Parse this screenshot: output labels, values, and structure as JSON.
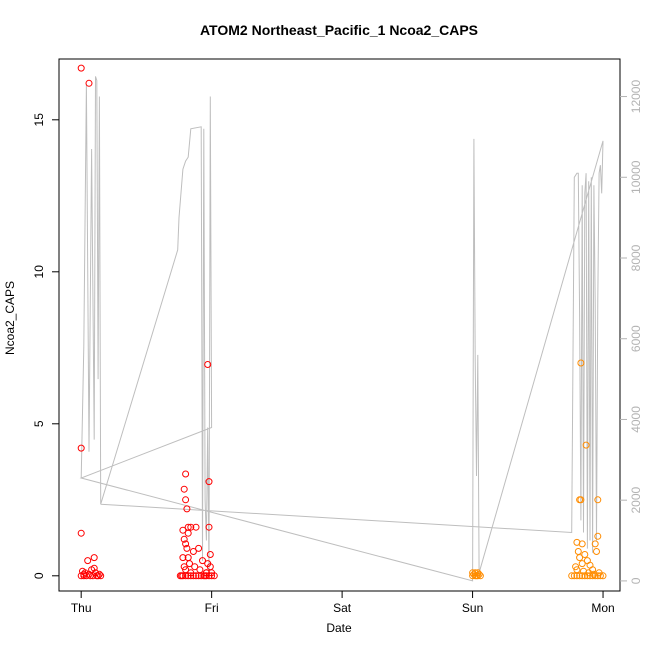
{
  "chart_data": {
    "type": "scatter",
    "title": "ATOM2 Northeast_Pacific_1 Ncoa2_CAPS",
    "xlabel": "Date",
    "ylabel": "Ncoa2_CAPS",
    "x_unit": "days from Thursday 00:00",
    "xlim": [
      -0.17,
      4.13
    ],
    "ylim": [
      -0.5,
      17.0
    ],
    "x_ticks": [
      {
        "value": 0,
        "label": "Thu"
      },
      {
        "value": 1,
        "label": "Fri"
      },
      {
        "value": 2,
        "label": "Sat"
      },
      {
        "value": 3,
        "label": "Sun"
      },
      {
        "value": 4,
        "label": "Mon"
      }
    ],
    "y_ticks": [
      0,
      5,
      10,
      15
    ],
    "y2_ticks": [
      0,
      2000,
      4000,
      6000,
      8000,
      10000,
      12000
    ],
    "y2lim": [
      -250,
      12930
    ],
    "grid": false,
    "legend": "none",
    "colors": {
      "red": "#ff0000",
      "orange": "#ff8c00",
      "line": "#bebebe",
      "right_axis": "#b3b3b3"
    },
    "series": [
      {
        "color": "red",
        "points": [
          [
            0.0,
            16.7
          ],
          [
            0.06,
            16.2
          ],
          [
            0.0,
            4.2
          ],
          [
            0.0,
            1.4
          ],
          [
            0.05,
            0.5
          ],
          [
            0.1,
            0.6
          ],
          [
            0.01,
            0.15
          ],
          [
            0.02,
            0.05
          ],
          [
            0.03,
            0.1
          ],
          [
            0.04,
            0.0
          ],
          [
            0.06,
            0.05
          ],
          [
            0.08,
            0.2
          ],
          [
            0.09,
            0.0
          ],
          [
            0.11,
            0.1
          ],
          [
            0.12,
            0.0
          ],
          [
            0.14,
            0.05
          ],
          [
            0.15,
            0.0
          ],
          [
            0.0,
            0.0
          ],
          [
            0.02,
            0.0
          ],
          [
            0.07,
            0.0
          ],
          [
            0.13,
            0.0
          ],
          [
            0.1,
            0.25
          ],
          [
            0.8,
            3.35
          ],
          [
            0.79,
            2.85
          ],
          [
            0.8,
            2.5
          ],
          [
            0.81,
            2.2
          ],
          [
            0.78,
            1.5
          ],
          [
            0.82,
            1.4
          ],
          [
            0.79,
            1.2
          ],
          [
            0.8,
            1.05
          ],
          [
            0.81,
            0.9
          ],
          [
            0.78,
            0.6
          ],
          [
            0.82,
            0.6
          ],
          [
            0.83,
            0.4
          ],
          [
            0.79,
            0.3
          ],
          [
            0.8,
            0.2
          ],
          [
            0.84,
            0.1
          ],
          [
            0.77,
            0.0
          ],
          [
            0.76,
            0.0
          ],
          [
            0.78,
            0.0
          ],
          [
            0.8,
            0.0
          ],
          [
            0.82,
            0.0
          ],
          [
            0.84,
            0.0
          ],
          [
            0.86,
            0.0
          ],
          [
            0.88,
            0.0
          ],
          [
            0.9,
            0.0
          ],
          [
            0.92,
            0.0
          ],
          [
            0.94,
            0.0
          ],
          [
            0.96,
            0.0
          ],
          [
            0.98,
            0.0
          ],
          [
            1.0,
            0.0
          ],
          [
            1.02,
            0.0
          ],
          [
            0.82,
            1.6
          ],
          [
            0.84,
            1.6
          ],
          [
            0.88,
            1.6
          ],
          [
            0.86,
            0.8
          ],
          [
            0.9,
            0.9
          ],
          [
            0.87,
            0.3
          ],
          [
            0.91,
            0.2
          ],
          [
            0.93,
            0.5
          ],
          [
            0.95,
            0.0
          ],
          [
            0.96,
            0.1
          ],
          [
            0.97,
            6.95
          ],
          [
            0.98,
            3.1
          ],
          [
            0.98,
            1.6
          ],
          [
            0.99,
            0.7
          ],
          [
            0.97,
            0.4
          ],
          [
            0.99,
            0.3
          ],
          [
            1.0,
            0.1
          ],
          [
            0.96,
            0.1
          ]
        ]
      },
      {
        "color": "orange",
        "points": [
          [
            3.0,
            0.1
          ],
          [
            3.01,
            0.05
          ],
          [
            3.02,
            0.1
          ],
          [
            3.03,
            0.0
          ],
          [
            3.04,
            0.1
          ],
          [
            3.05,
            0.05
          ],
          [
            3.06,
            0.0
          ],
          [
            3.0,
            0.0
          ],
          [
            3.02,
            0.0
          ],
          [
            3.04,
            0.0
          ],
          [
            3.83,
            7.0
          ],
          [
            3.87,
            4.3
          ],
          [
            3.83,
            2.5
          ],
          [
            3.82,
            2.5
          ],
          [
            3.96,
            2.5
          ],
          [
            3.8,
            1.1
          ],
          [
            3.84,
            1.05
          ],
          [
            3.96,
            1.3
          ],
          [
            3.94,
            1.05
          ],
          [
            3.95,
            0.8
          ],
          [
            3.81,
            0.8
          ],
          [
            3.82,
            0.6
          ],
          [
            3.86,
            0.7
          ],
          [
            3.88,
            0.5
          ],
          [
            3.84,
            0.4
          ],
          [
            3.79,
            0.3
          ],
          [
            3.8,
            0.2
          ],
          [
            3.9,
            0.35
          ],
          [
            3.92,
            0.2
          ],
          [
            3.97,
            0.1
          ],
          [
            3.76,
            0.0
          ],
          [
            3.78,
            0.0
          ],
          [
            3.8,
            0.0
          ],
          [
            3.82,
            0.0
          ],
          [
            3.84,
            0.0
          ],
          [
            3.86,
            0.0
          ],
          [
            3.88,
            0.0
          ],
          [
            3.9,
            0.0
          ],
          [
            3.92,
            0.0
          ],
          [
            3.94,
            0.0
          ],
          [
            3.96,
            0.0
          ],
          [
            3.98,
            0.0
          ],
          [
            4.0,
            0.0
          ],
          [
            3.85,
            0.15
          ],
          [
            3.89,
            0.1
          ],
          [
            3.93,
            0.05
          ]
        ]
      }
    ],
    "secondary_line": {
      "axis": "right",
      "points": [
        [
          0.0,
          2550
        ],
        [
          0.02,
          5800
        ],
        [
          0.04,
          12300
        ],
        [
          0.06,
          3200
        ],
        [
          0.08,
          10700
        ],
        [
          0.1,
          3500
        ],
        [
          0.11,
          12500
        ],
        [
          0.12,
          12400
        ],
        [
          0.13,
          5000
        ],
        [
          0.14,
          12000
        ],
        [
          0.15,
          1900
        ],
        [
          0.74,
          8200
        ],
        [
          0.75,
          9000
        ],
        [
          0.76,
          9400
        ],
        [
          0.78,
          10200
        ],
        [
          0.8,
          10400
        ],
        [
          0.82,
          10500
        ],
        [
          0.84,
          11200
        ],
        [
          0.92,
          11250
        ],
        [
          0.93,
          500
        ],
        [
          0.94,
          11200
        ],
        [
          0.95,
          2000
        ],
        [
          0.96,
          1000
        ],
        [
          0.97,
          3800
        ],
        [
          0.98,
          200
        ],
        [
          0.99,
          12000
        ],
        [
          1.0,
          3800
        ],
        [
          0.0,
          2550
        ],
        [
          3.0,
          0
        ],
        [
          3.01,
          10950
        ],
        [
          3.02,
          5500
        ],
        [
          3.03,
          2600
        ],
        [
          3.04,
          5600
        ],
        [
          3.05,
          200
        ],
        [
          4.0,
          10900
        ],
        [
          3.99,
          9600
        ],
        [
          3.98,
          10300
        ],
        [
          3.97,
          10100
        ],
        [
          3.96,
          7000
        ],
        [
          3.95,
          1000
        ],
        [
          3.94,
          6900
        ],
        [
          3.93,
          9800
        ],
        [
          3.92,
          700
        ],
        [
          3.91,
          10000
        ],
        [
          3.9,
          1000
        ],
        [
          3.89,
          9900
        ],
        [
          3.88,
          800
        ],
        [
          3.87,
          10100
        ],
        [
          3.86,
          9600
        ],
        [
          3.85,
          1200
        ],
        [
          3.84,
          9800
        ],
        [
          3.83,
          1500
        ],
        [
          3.82,
          6600
        ],
        [
          3.81,
          10100
        ],
        [
          3.8,
          10100
        ],
        [
          3.78,
          10000
        ],
        [
          3.76,
          1200
        ],
        [
          0.15,
          1900
        ]
      ]
    }
  }
}
